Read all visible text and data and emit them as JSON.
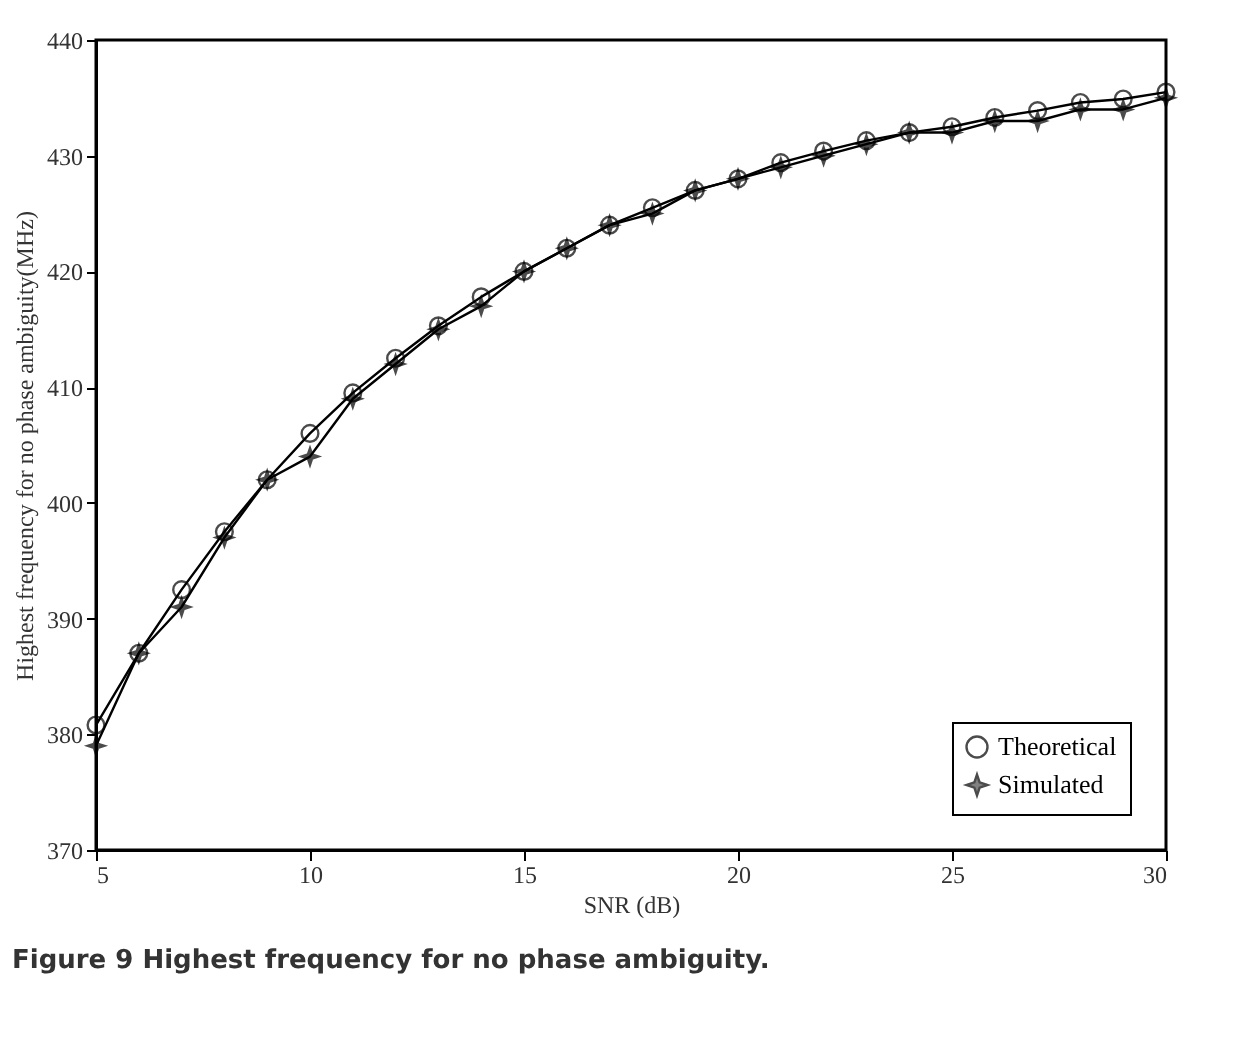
{
  "chart_data": {
    "type": "line",
    "xlabel": "SNR (dB)",
    "ylabel": "Highest frequency for no phase ambiguity(MHz)",
    "annotations": [
      "Figure 9 Highest frequency for no phase ambiguity."
    ],
    "x": [
      5,
      6,
      7,
      8,
      9,
      10,
      11,
      12,
      13,
      14,
      15,
      16,
      17,
      18,
      19,
      20,
      21,
      22,
      23,
      24,
      25,
      26,
      27,
      28,
      29,
      30
    ],
    "series": [
      {
        "name": "Theoretical",
        "color": "#000000",
        "marker": "circle",
        "values": [
          380.8,
          387,
          392.5,
          397.5,
          402,
          406,
          409.5,
          412.5,
          415.3,
          417.8,
          420,
          422,
          424,
          425.5,
          427,
          428,
          429.4,
          430.4,
          431.3,
          432,
          432.5,
          433.3,
          433.9,
          434.6,
          434.9,
          435.5
        ]
      },
      {
        "name": "Simulated",
        "color": "#000000",
        "marker": "star",
        "values": [
          379,
          387,
          391,
          397,
          402,
          404,
          409,
          412,
          415,
          417,
          420,
          422,
          424,
          425,
          427,
          428,
          429,
          430,
          431,
          432,
          432,
          433,
          433,
          434,
          434,
          435
        ]
      }
    ],
    "xlim": [
      5,
      30
    ],
    "xticks": [
      5,
      10,
      15,
      20,
      25,
      30
    ],
    "ylim": [
      370,
      440
    ],
    "yticks": [
      370,
      380,
      390,
      400,
      410,
      420,
      430,
      440
    ],
    "legend": "bottom right",
    "grid": false
  }
}
